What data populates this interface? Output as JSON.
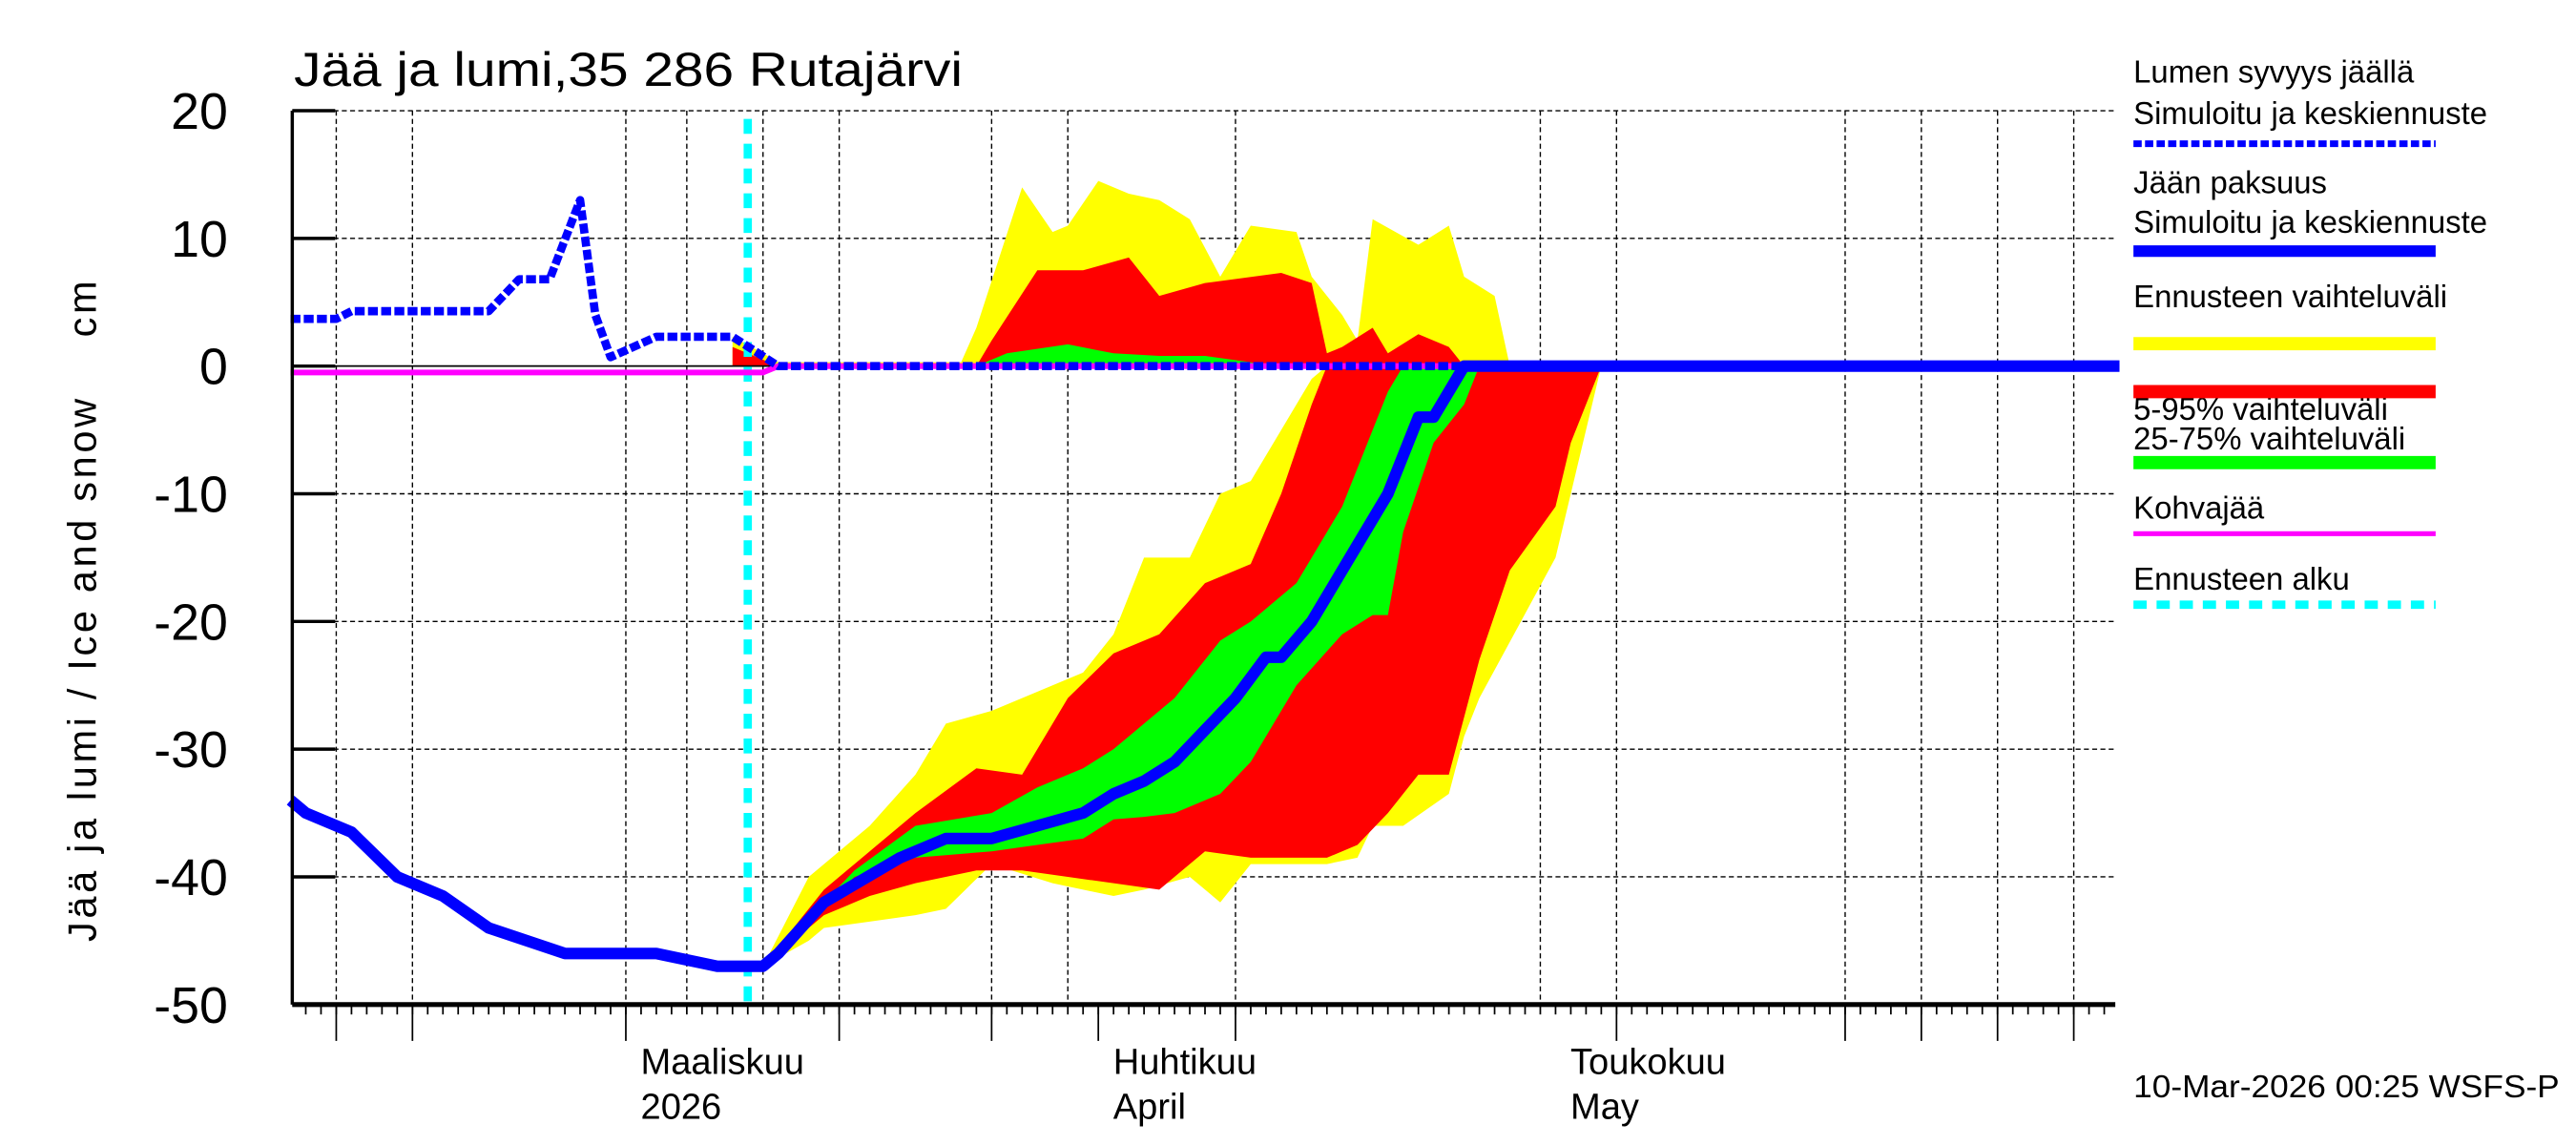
{
  "chart_data": {
    "type": "area",
    "title": "Jää ja lumi,35 286 Rutajärvi",
    "ylabel": "Jää ja lumi / Ice and snow    cm",
    "xlabel": "",
    "ylim": [
      -50,
      20
    ],
    "yticks": [
      20,
      10,
      0,
      -10,
      -20,
      -30,
      -40,
      -50
    ],
    "xlim": [
      "2026-02-07",
      "2026-06-07"
    ],
    "grid": true,
    "legend_position": "right",
    "month_labels": [
      {
        "date": "2026-03-01",
        "fi": "Maaliskuu",
        "en": "2026"
      },
      {
        "date": "2026-04-01",
        "fi": "Huhtikuu",
        "en": "April"
      },
      {
        "date": "2026-05-01",
        "fi": "Toukokuu",
        "en": "May"
      }
    ],
    "forecast_start": "2026-03-09",
    "timestamp": "10-Mar-2026 00:25 WSFS-P",
    "legend": [
      {
        "label1": "Lumen syvyys jäällä",
        "label2": "Simuloitu ja keskiennuste",
        "color": "#0000ff",
        "style": "dotted"
      },
      {
        "label1": "Jään paksuus",
        "label2": "Simuloitu ja keskiennuste",
        "color": "#0000ff",
        "style": "solid"
      },
      {
        "label1": "Ennusteen vaihteluväli",
        "color": "#ffff00",
        "style": "band"
      },
      {
        "label1": "5-95% vaihteluväli",
        "color": "#ff0000",
        "style": "band"
      },
      {
        "label1": "25-75% vaihteluväli",
        "color": "#00ff00",
        "style": "band"
      },
      {
        "label1": "Kohvajää",
        "color": "#ff00ff",
        "style": "line"
      },
      {
        "label1": "Ennusteen alku",
        "color": "#00ffff",
        "style": "dashed"
      }
    ],
    "bands": [
      {
        "name": "Ennusteen vaihteluväli",
        "part": "ice",
        "color": "#ffff00",
        "points": [
          [
            "2026-03-10",
            -47,
            -47
          ],
          [
            "2026-03-13",
            -45,
            -40
          ],
          [
            "2026-03-14",
            -44,
            -39
          ],
          [
            "2026-03-17",
            -43.5,
            -36
          ],
          [
            "2026-03-20",
            -43,
            -32
          ],
          [
            "2026-03-22",
            -42.5,
            -28
          ],
          [
            "2026-03-25",
            -39,
            -27
          ],
          [
            "2026-03-29",
            -40.5,
            -25
          ],
          [
            "2026-03-31",
            -41,
            -24
          ],
          [
            "2026-04-02",
            -41.5,
            -21
          ],
          [
            "2026-04-04",
            -41,
            -15
          ],
          [
            "2026-04-07",
            -40,
            -15
          ],
          [
            "2026-04-09",
            -42,
            -10
          ],
          [
            "2026-04-11",
            -39,
            -9
          ],
          [
            "2026-04-13",
            -39,
            -5
          ],
          [
            "2026-04-15",
            -39,
            -1
          ],
          [
            "2026-04-16",
            -39,
            0
          ],
          [
            "2026-04-18",
            -38.5,
            0
          ],
          [
            "2026-04-19",
            -36,
            0
          ],
          [
            "2026-04-21",
            -36,
            0
          ],
          [
            "2026-04-24",
            -33.5,
            0
          ],
          [
            "2026-04-25",
            -29,
            0
          ],
          [
            "2026-04-26",
            -26,
            0
          ],
          [
            "2026-05-01",
            -15,
            0
          ],
          [
            "2026-05-03",
            -5,
            0
          ],
          [
            "2026-05-04",
            0,
            0
          ]
        ]
      },
      {
        "name": "5-95% vaihteluväli",
        "part": "ice",
        "color": "#ff0000",
        "points": [
          [
            "2026-03-10",
            -47,
            -47
          ],
          [
            "2026-03-14",
            -43,
            -41
          ],
          [
            "2026-03-17",
            -41.5,
            -38
          ],
          [
            "2026-03-20",
            -40.5,
            -35
          ],
          [
            "2026-03-24",
            -39.5,
            -31.5
          ],
          [
            "2026-03-27",
            -39.5,
            -32
          ],
          [
            "2026-03-30",
            -40,
            -26
          ],
          [
            "2026-04-02",
            -40.5,
            -22.5
          ],
          [
            "2026-04-05",
            -41,
            -21
          ],
          [
            "2026-04-08",
            -38,
            -17
          ],
          [
            "2026-04-11",
            -38.5,
            -15.5
          ],
          [
            "2026-04-13",
            -38.5,
            -10
          ],
          [
            "2026-04-15",
            -38.5,
            -3
          ],
          [
            "2026-04-16",
            -38.5,
            0
          ],
          [
            "2026-04-18",
            -37.5,
            0
          ],
          [
            "2026-04-20",
            -35,
            0
          ],
          [
            "2026-04-22",
            -32,
            0
          ],
          [
            "2026-04-24",
            -32,
            0
          ],
          [
            "2026-04-26",
            -23,
            0
          ],
          [
            "2026-04-28",
            -16,
            0
          ],
          [
            "2026-05-01",
            -11,
            0
          ],
          [
            "2026-05-02",
            -6,
            0
          ],
          [
            "2026-05-04",
            0,
            0
          ]
        ]
      },
      {
        "name": "25-75% vaihteluväli",
        "part": "ice",
        "color": "#00ff00",
        "points": [
          [
            "2026-03-10",
            -47,
            -47
          ],
          [
            "2026-03-16",
            -40,
            -39.5
          ],
          [
            "2026-03-20",
            -38.5,
            -36
          ],
          [
            "2026-03-25",
            -38,
            -35
          ],
          [
            "2026-03-28",
            -37.5,
            -33
          ],
          [
            "2026-03-31",
            -37,
            -31.5
          ],
          [
            "2026-04-02",
            -35.5,
            -30
          ],
          [
            "2026-04-04",
            -35.3,
            -28
          ],
          [
            "2026-04-06",
            -35,
            -26
          ],
          [
            "2026-04-09",
            -33.5,
            -21.5
          ],
          [
            "2026-04-11",
            -31,
            -20
          ],
          [
            "2026-04-12",
            -29,
            -19
          ],
          [
            "2026-04-14",
            -25,
            -17
          ],
          [
            "2026-04-17",
            -21,
            -11
          ],
          [
            "2026-04-19",
            -19.5,
            -5
          ],
          [
            "2026-04-20",
            -19.5,
            -2
          ],
          [
            "2026-04-21",
            -13,
            0
          ],
          [
            "2026-04-23",
            -6,
            0
          ],
          [
            "2026-04-25",
            -3,
            0
          ],
          [
            "2026-04-26",
            0,
            0
          ]
        ]
      },
      {
        "name": "Ennusteen vaihteluväli",
        "part": "snow",
        "color": "#ffff00",
        "points": [
          [
            "2026-03-08",
            0,
            2.3
          ],
          [
            "2026-03-10",
            0,
            1
          ],
          [
            "2026-03-11",
            0,
            0.3
          ],
          [
            "2026-03-23",
            0,
            0.3
          ],
          [
            "2026-03-24",
            0,
            3
          ],
          [
            "2026-03-27",
            0,
            14
          ],
          [
            "2026-03-29",
            0,
            10.5
          ],
          [
            "2026-03-30",
            0,
            11
          ],
          [
            "2026-04-01",
            0,
            14.5
          ],
          [
            "2026-04-03",
            0,
            13.5
          ],
          [
            "2026-04-05",
            0,
            13
          ],
          [
            "2026-04-07",
            0,
            11.5
          ],
          [
            "2026-04-09",
            0,
            7
          ],
          [
            "2026-04-11",
            0,
            11
          ],
          [
            "2026-04-14",
            0,
            10.5
          ],
          [
            "2026-04-15",
            0,
            7
          ],
          [
            "2026-04-17",
            0,
            4
          ],
          [
            "2026-04-18",
            0,
            2
          ],
          [
            "2026-04-19",
            0,
            11.5
          ],
          [
            "2026-04-22",
            0,
            9.5
          ],
          [
            "2026-04-24",
            0,
            11
          ],
          [
            "2026-04-25",
            0,
            7
          ],
          [
            "2026-04-27",
            0,
            5.5
          ],
          [
            "2026-04-28",
            0,
            0
          ]
        ]
      },
      {
        "name": "5-95% vaihteluväli",
        "part": "snow",
        "color": "#ff0000",
        "points": [
          [
            "2026-03-08",
            0,
            1.5
          ],
          [
            "2026-03-10",
            0,
            0.5
          ],
          [
            "2026-03-11",
            0,
            0
          ],
          [
            "2026-03-24",
            0,
            0
          ],
          [
            "2026-03-25",
            0,
            2
          ],
          [
            "2026-03-28",
            0,
            7.5
          ],
          [
            "2026-03-31",
            0,
            7.5
          ],
          [
            "2026-04-03",
            0,
            8.5
          ],
          [
            "2026-04-05",
            0,
            5.5
          ],
          [
            "2026-04-08",
            0,
            6.5
          ],
          [
            "2026-04-13",
            0,
            7.3
          ],
          [
            "2026-04-15",
            0,
            6.5
          ],
          [
            "2026-04-16",
            0,
            1
          ],
          [
            "2026-04-17",
            0,
            1.5
          ],
          [
            "2026-04-19",
            0,
            3
          ],
          [
            "2026-04-20",
            0,
            1
          ],
          [
            "2026-04-22",
            0,
            2.5
          ],
          [
            "2026-04-24",
            0,
            1.5
          ],
          [
            "2026-04-25",
            0,
            0
          ]
        ]
      },
      {
        "name": "25-75% vaihteluväli",
        "part": "snow",
        "color": "#00ff00",
        "points": [
          [
            "2026-03-24",
            0,
            0
          ],
          [
            "2026-03-26",
            0,
            1
          ],
          [
            "2026-03-30",
            0,
            1.7
          ],
          [
            "2026-04-02",
            0,
            1
          ],
          [
            "2026-04-05",
            0,
            0.8
          ],
          [
            "2026-04-08",
            0,
            0.8
          ],
          [
            "2026-04-11",
            0,
            0.3
          ],
          [
            "2026-04-12",
            0,
            0
          ]
        ]
      }
    ],
    "series": [
      {
        "name": "Lumen syvyys jäällä",
        "color": "#0000ff",
        "style": "dotted",
        "points": [
          [
            "2026-02-07",
            3.7
          ],
          [
            "2026-02-10",
            3.7
          ],
          [
            "2026-02-11",
            4.3
          ],
          [
            "2026-02-20",
            4.3
          ],
          [
            "2026-02-22",
            6.8
          ],
          [
            "2026-02-24",
            6.8
          ],
          [
            "2026-02-26",
            13
          ],
          [
            "2026-02-27",
            4
          ],
          [
            "2026-02-28",
            0.7
          ],
          [
            "2026-03-03",
            2.3
          ],
          [
            "2026-03-08",
            2.3
          ],
          [
            "2026-03-11",
            0
          ],
          [
            "2026-06-07",
            0
          ]
        ]
      },
      {
        "name": "Jään paksuus",
        "color": "#0000ff",
        "style": "solid",
        "points": [
          [
            "2026-02-07",
            -34
          ],
          [
            "2026-02-08",
            -35
          ],
          [
            "2026-02-11",
            -36.5
          ],
          [
            "2026-02-14",
            -40
          ],
          [
            "2026-02-17",
            -41.5
          ],
          [
            "2026-02-20",
            -44
          ],
          [
            "2026-02-25",
            -46
          ],
          [
            "2026-03-03",
            -46
          ],
          [
            "2026-03-07",
            -47
          ],
          [
            "2026-03-10",
            -47
          ],
          [
            "2026-03-11",
            -46
          ],
          [
            "2026-03-14",
            -42
          ],
          [
            "2026-03-19",
            -38.5
          ],
          [
            "2026-03-22",
            -37
          ],
          [
            "2026-03-25",
            -37
          ],
          [
            "2026-03-28",
            -36
          ],
          [
            "2026-03-31",
            -35
          ],
          [
            "2026-04-02",
            -33.5
          ],
          [
            "2026-04-04",
            -32.5
          ],
          [
            "2026-04-06",
            -31
          ],
          [
            "2026-04-08",
            -28.5
          ],
          [
            "2026-04-10",
            -26
          ],
          [
            "2026-04-12",
            -22.8
          ],
          [
            "2026-04-13",
            -22.8
          ],
          [
            "2026-04-15",
            -20
          ],
          [
            "2026-04-18",
            -14
          ],
          [
            "2026-04-20",
            -10
          ],
          [
            "2026-04-22",
            -4
          ],
          [
            "2026-04-23",
            -4
          ],
          [
            "2026-04-25",
            0
          ],
          [
            "2026-06-07",
            0
          ]
        ]
      },
      {
        "name": "Kohvajää",
        "color": "#ff00ff",
        "style": "solid",
        "points": [
          [
            "2026-02-07",
            -0.5
          ],
          [
            "2026-03-10",
            -0.5
          ],
          [
            "2026-03-11",
            0
          ],
          [
            "2026-06-07",
            0
          ]
        ]
      }
    ]
  }
}
